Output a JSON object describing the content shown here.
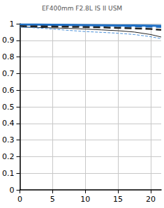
{
  "chart_data": {
    "type": "line",
    "title": "EF400mm F2.8L IS II USM",
    "x": [
      0,
      2.5,
      5,
      7.5,
      10,
      12.5,
      15,
      17.5,
      20,
      21.6
    ],
    "series": [
      {
        "color": "#1f6fc4",
        "line_style": "solid",
        "values": [
          0.995,
          0.995,
          0.994,
          0.993,
          0.992,
          0.991,
          0.99,
          0.989,
          0.988,
          0.987
        ]
      },
      {
        "color": "#1f6fc4",
        "line_style": "dashed",
        "values": [
          0.995,
          0.994,
          0.993,
          0.992,
          0.99,
          0.988,
          0.986,
          0.984,
          0.982,
          0.98
        ]
      },
      {
        "color": "#222222",
        "line_style": "dashed",
        "values": [
          0.985,
          0.984,
          0.983,
          0.982,
          0.98,
          0.978,
          0.975,
          0.972,
          0.968,
          0.963
        ]
      },
      {
        "color": "#222222",
        "line_style": "solid",
        "values": [
          0.98,
          0.978,
          0.975,
          0.972,
          0.968,
          0.963,
          0.958,
          0.95,
          0.935,
          0.92
        ]
      },
      {
        "color": "#4a8fd8",
        "line_style": "dashed",
        "values": [
          0.98,
          0.975,
          0.968,
          0.96,
          0.953,
          0.948,
          0.943,
          0.935,
          0.922,
          0.91
        ]
      }
    ],
    "xlim": [
      0,
      21.6
    ],
    "xticks": [
      0,
      5,
      10,
      15,
      20
    ],
    "ylim": [
      0,
      1
    ],
    "yticks": [
      0,
      0.1,
      0.2,
      0.3,
      0.4,
      0.5,
      0.6,
      0.7,
      0.8,
      0.9,
      1
    ],
    "grid": true
  }
}
